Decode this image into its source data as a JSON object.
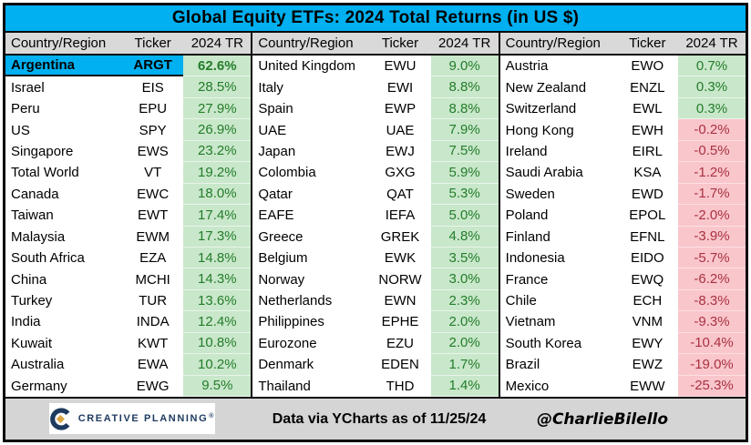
{
  "title": "Global Equity ETFs: 2024 Total Returns (in US $)",
  "colors": {
    "title_bar_bg": "#00b0f0",
    "header_bg": "#d9d9d9",
    "footer_bg": "#d5d5d5",
    "highlight_bg": "#00b0f0",
    "positive_bg": "#c9e7ca",
    "positive_text": "#227d2a",
    "negative_bg": "#f9c6cc",
    "negative_text": "#aa3140",
    "logo_navy": "#1d3a5f",
    "logo_gold": "#d9a441"
  },
  "chart_data": {
    "type": "table",
    "title": "Global Equity ETFs: 2024 Total Returns (in US $)",
    "columns": [
      "Country/Region",
      "Ticker",
      "2024 TR"
    ],
    "groups": [
      [
        {
          "country": "Argentina",
          "ticker": "ARGT",
          "tr": "62.6%",
          "value": 62.6,
          "highlight": true
        },
        {
          "country": "Israel",
          "ticker": "EIS",
          "tr": "28.5%",
          "value": 28.5
        },
        {
          "country": "Peru",
          "ticker": "EPU",
          "tr": "27.9%",
          "value": 27.9
        },
        {
          "country": "US",
          "ticker": "SPY",
          "tr": "26.9%",
          "value": 26.9
        },
        {
          "country": "Singapore",
          "ticker": "EWS",
          "tr": "23.2%",
          "value": 23.2
        },
        {
          "country": "Total World",
          "ticker": "VT",
          "tr": "19.2%",
          "value": 19.2
        },
        {
          "country": "Canada",
          "ticker": "EWC",
          "tr": "18.0%",
          "value": 18.0
        },
        {
          "country": "Taiwan",
          "ticker": "EWT",
          "tr": "17.4%",
          "value": 17.4
        },
        {
          "country": "Malaysia",
          "ticker": "EWM",
          "tr": "17.3%",
          "value": 17.3
        },
        {
          "country": "South Africa",
          "ticker": "EZA",
          "tr": "14.8%",
          "value": 14.8
        },
        {
          "country": "China",
          "ticker": "MCHI",
          "tr": "14.3%",
          "value": 14.3
        },
        {
          "country": "Turkey",
          "ticker": "TUR",
          "tr": "13.6%",
          "value": 13.6
        },
        {
          "country": "India",
          "ticker": "INDA",
          "tr": "12.4%",
          "value": 12.4
        },
        {
          "country": "Kuwait",
          "ticker": "KWT",
          "tr": "10.8%",
          "value": 10.8
        },
        {
          "country": "Australia",
          "ticker": "EWA",
          "tr": "10.2%",
          "value": 10.2
        },
        {
          "country": "Germany",
          "ticker": "EWG",
          "tr": "9.5%",
          "value": 9.5
        }
      ],
      [
        {
          "country": "United Kingdom",
          "ticker": "EWU",
          "tr": "9.0%",
          "value": 9.0
        },
        {
          "country": "Italy",
          "ticker": "EWI",
          "tr": "8.8%",
          "value": 8.8
        },
        {
          "country": "Spain",
          "ticker": "EWP",
          "tr": "8.8%",
          "value": 8.8
        },
        {
          "country": "UAE",
          "ticker": "UAE",
          "tr": "7.9%",
          "value": 7.9
        },
        {
          "country": "Japan",
          "ticker": "EWJ",
          "tr": "7.5%",
          "value": 7.5
        },
        {
          "country": "Colombia",
          "ticker": "GXG",
          "tr": "5.9%",
          "value": 5.9
        },
        {
          "country": "Qatar",
          "ticker": "QAT",
          "tr": "5.3%",
          "value": 5.3
        },
        {
          "country": "EAFE",
          "ticker": "IEFA",
          "tr": "5.0%",
          "value": 5.0
        },
        {
          "country": "Greece",
          "ticker": "GREK",
          "tr": "4.8%",
          "value": 4.8
        },
        {
          "country": "Belgium",
          "ticker": "EWK",
          "tr": "3.5%",
          "value": 3.5
        },
        {
          "country": "Norway",
          "ticker": "NORW",
          "tr": "3.0%",
          "value": 3.0
        },
        {
          "country": "Netherlands",
          "ticker": "EWN",
          "tr": "2.3%",
          "value": 2.3
        },
        {
          "country": "Philippines",
          "ticker": "EPHE",
          "tr": "2.0%",
          "value": 2.0
        },
        {
          "country": "Eurozone",
          "ticker": "EZU",
          "tr": "2.0%",
          "value": 2.0
        },
        {
          "country": "Denmark",
          "ticker": "EDEN",
          "tr": "1.7%",
          "value": 1.7
        },
        {
          "country": "Thailand",
          "ticker": "THD",
          "tr": "1.4%",
          "value": 1.4
        }
      ],
      [
        {
          "country": "Austria",
          "ticker": "EWO",
          "tr": "0.7%",
          "value": 0.7
        },
        {
          "country": "New Zealand",
          "ticker": "ENZL",
          "tr": "0.3%",
          "value": 0.3
        },
        {
          "country": "Switzerland",
          "ticker": "EWL",
          "tr": "0.3%",
          "value": 0.3
        },
        {
          "country": "Hong Kong",
          "ticker": "EWH",
          "tr": "-0.2%",
          "value": -0.2
        },
        {
          "country": "Ireland",
          "ticker": "EIRL",
          "tr": "-0.5%",
          "value": -0.5
        },
        {
          "country": "Saudi Arabia",
          "ticker": "KSA",
          "tr": "-1.2%",
          "value": -1.2
        },
        {
          "country": "Sweden",
          "ticker": "EWD",
          "tr": "-1.7%",
          "value": -1.7
        },
        {
          "country": "Poland",
          "ticker": "EPOL",
          "tr": "-2.0%",
          "value": -2.0
        },
        {
          "country": "Finland",
          "ticker": "EFNL",
          "tr": "-3.9%",
          "value": -3.9
        },
        {
          "country": "Indonesia",
          "ticker": "EIDO",
          "tr": "-5.7%",
          "value": -5.7
        },
        {
          "country": "France",
          "ticker": "EWQ",
          "tr": "-6.2%",
          "value": -6.2
        },
        {
          "country": "Chile",
          "ticker": "ECH",
          "tr": "-8.3%",
          "value": -8.3
        },
        {
          "country": "Vietnam",
          "ticker": "VNM",
          "tr": "-9.3%",
          "value": -9.3
        },
        {
          "country": "South Korea",
          "ticker": "EWY",
          "tr": "-10.4%",
          "value": -10.4
        },
        {
          "country": "Brazil",
          "ticker": "EWZ",
          "tr": "-19.0%",
          "value": -19.0
        },
        {
          "country": "Mexico",
          "ticker": "EWW",
          "tr": "-25.3%",
          "value": -25.3
        }
      ]
    ]
  },
  "footer": {
    "logo_text": "CREATIVE PLANNING",
    "logo_mark": "®",
    "source_text": "Data via YCharts as of 11/25/24",
    "handle": "@CharlieBilello"
  }
}
